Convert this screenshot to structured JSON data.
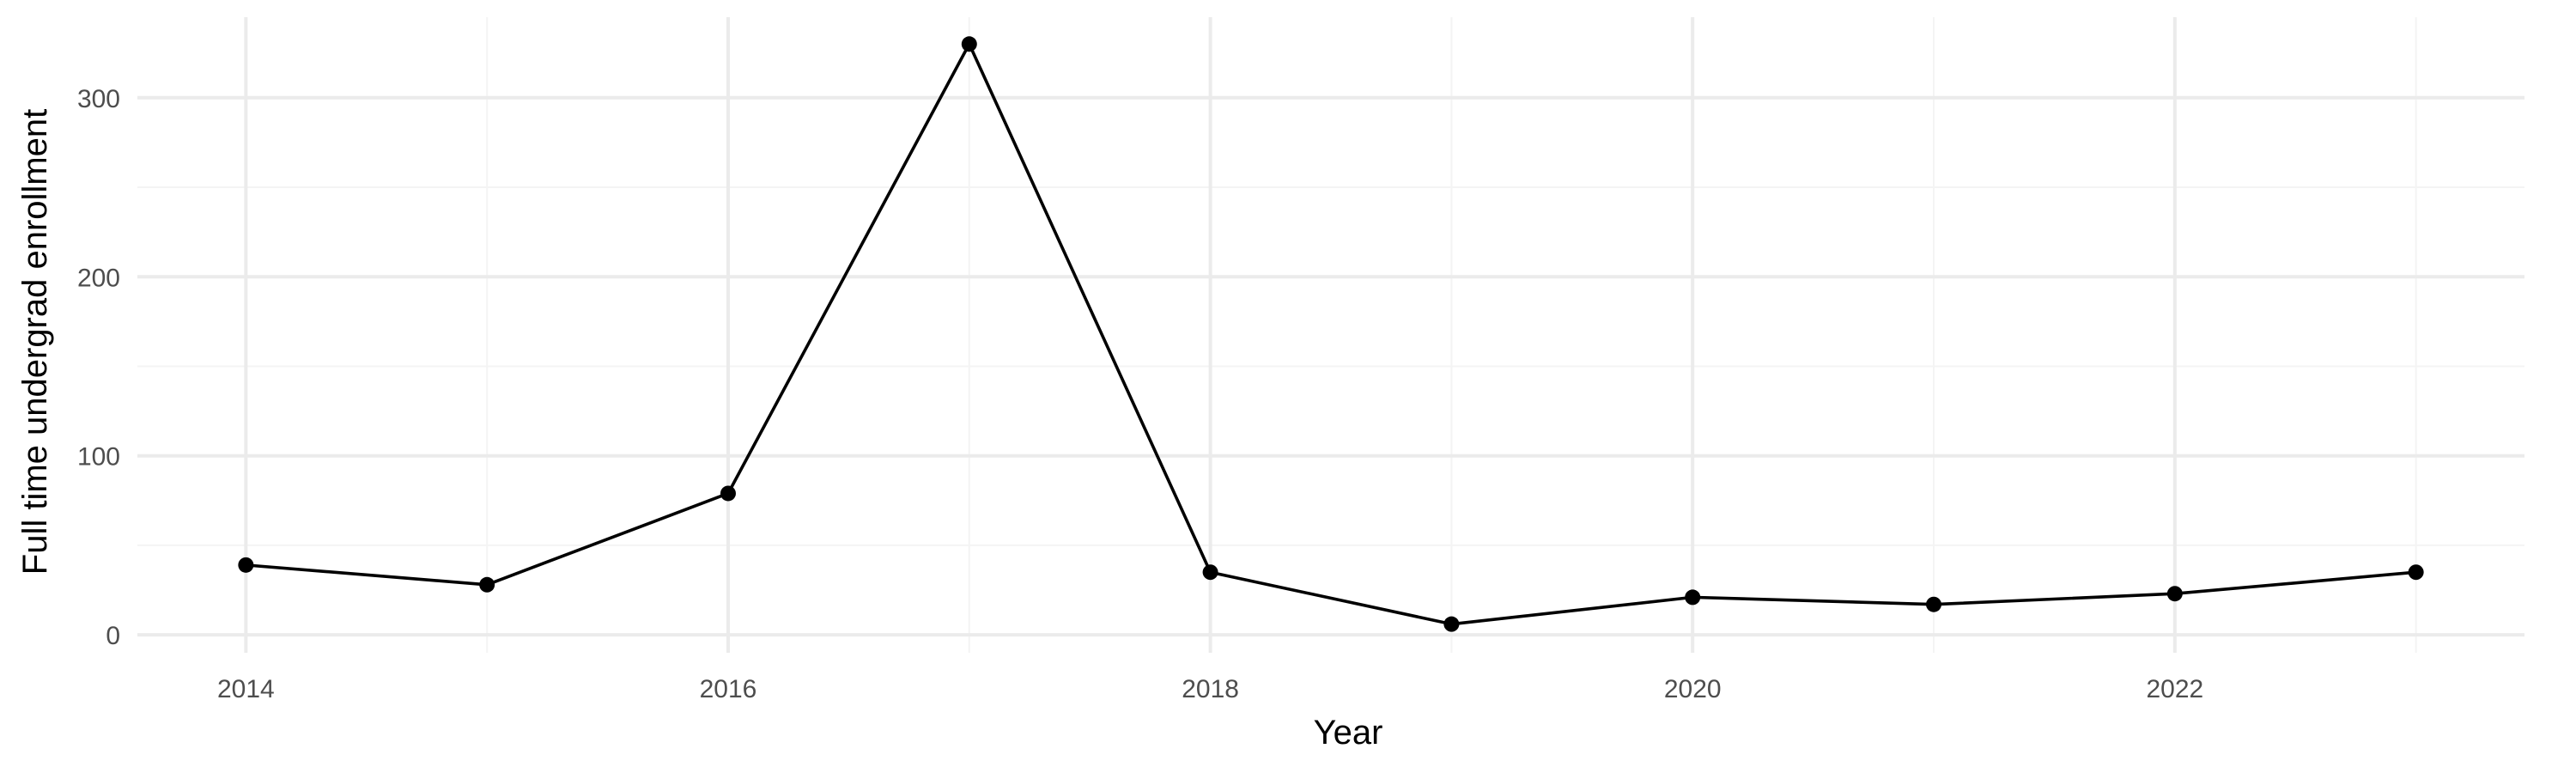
{
  "chart_data": {
    "type": "line",
    "title": "",
    "xlabel": "Year",
    "ylabel": "Full time undergrad enrollment",
    "x": [
      2014,
      2015,
      2016,
      2017,
      2018,
      2019,
      2020,
      2021,
      2022,
      2023
    ],
    "series": [
      {
        "values": [
          39,
          28,
          79,
          330,
          35,
          6,
          21,
          17,
          23,
          35
        ]
      }
    ],
    "xlim": [
      2013.55,
      2023.45
    ],
    "ylim": [
      -10,
      345
    ],
    "x_ticks": [
      2014,
      2016,
      2018,
      2020,
      2022
    ],
    "x_tick_labels": [
      "2014",
      "2016",
      "2018",
      "2020",
      "2022"
    ],
    "x_minor_ticks": [
      2015,
      2017,
      2019,
      2021,
      2023
    ],
    "y_ticks": [
      0,
      100,
      200,
      300
    ],
    "y_tick_labels": [
      "0",
      "100",
      "200",
      "300"
    ],
    "y_minor_ticks": [
      50,
      150,
      250
    ],
    "grid": true,
    "legend": "none",
    "line_color": "#000000",
    "point_color": "#000000",
    "grid_color": "#ebebeb"
  }
}
